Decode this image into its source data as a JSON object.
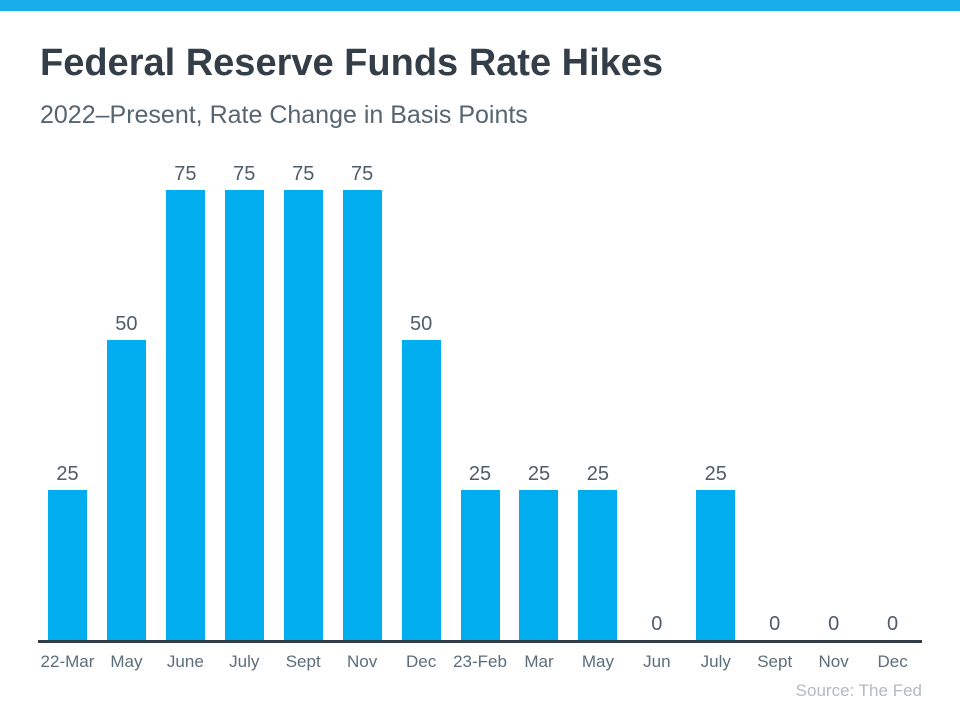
{
  "header": {
    "title": "Federal Reserve Funds Rate Hikes",
    "subtitle": "2022–Present, Rate Change in Basis Points"
  },
  "chart_data": {
    "type": "bar",
    "title": "Federal Reserve Funds Rate Hikes",
    "subtitle": "2022–Present, Rate Change in Basis Points",
    "categories": [
      "22-Mar",
      "May",
      "June",
      "July",
      "Sept",
      "Nov",
      "Dec",
      "23-Feb",
      "Mar",
      "May",
      "Jun",
      "July",
      "Sept",
      "Nov",
      "Dec"
    ],
    "values": [
      25,
      50,
      75,
      75,
      75,
      75,
      50,
      25,
      25,
      25,
      0,
      25,
      0,
      0,
      0
    ],
    "ylabel": "Rate Change in Basis Points",
    "xlabel": "",
    "ylim": [
      0,
      75
    ],
    "grid": false,
    "legend": "none",
    "value_labels_shown": true
  },
  "footer": {
    "source": "Source: The Fed"
  },
  "theme": {
    "topbar_color": "#16ADE9",
    "bar_color": "#00AEEF",
    "title_color": "#333E48",
    "subtitle_color": "#56656F",
    "value_label_color": "#4E5D69",
    "axis_line_color": "#313D47",
    "axis_label_color": "#5C6E7A",
    "source_color": "#B2BAC1"
  }
}
